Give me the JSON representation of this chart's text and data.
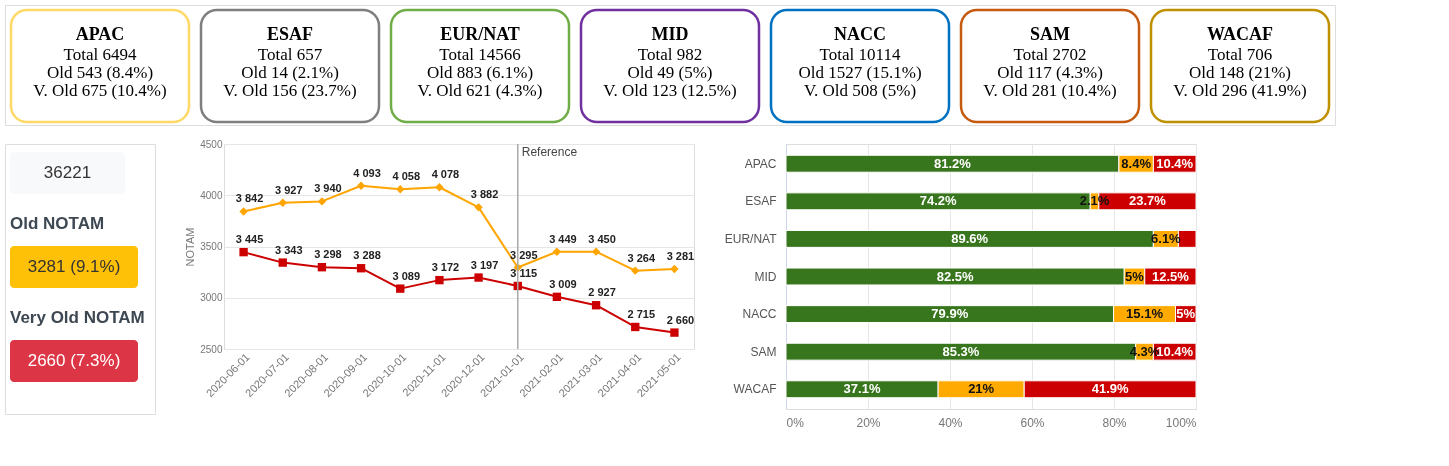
{
  "chart_data": [
    {
      "type": "other",
      "categories": [
        "APAC",
        "ESAF",
        "EUR/NAT",
        "MID",
        "NACC",
        "SAM",
        "WACAF"
      ],
      "colors": [
        "#ffd966",
        "#7f7f7f",
        "#70ad47",
        "#7030a0",
        "#0070c0",
        "#c55a11",
        "#bf9000"
      ],
      "annotations": [
        "Total 6494",
        "Old 543 (8.4%)",
        "V. Old 675 (10.4%)",
        "Total 657",
        "Old 14 (2.1%)",
        "V. Old 156 (23.7%)",
        "Total 14566",
        "Old 883 (6.1%)",
        "V. Old 621 (4.3%)",
        "Total 982",
        "Old 49 (5%)",
        "V. Old 123 (12.5%)",
        "Total 10114",
        "Old 1527 (15.1%)",
        "V. Old 508 (5%)",
        "Total 2702",
        "Old 117 (4.3%)",
        "V. Old 281 (10.4%)",
        "Total 706",
        "Old 148 (21%)",
        "V. Old 296 (41.9%)"
      ]
    },
    {
      "type": "other",
      "annotations": [
        "36221",
        "Old NOTAM",
        "3281 (9.1%)",
        "Very Old NOTAM",
        "2660 (7.3%)"
      ],
      "colors": [
        "#f8f9fa",
        "#ffc107",
        "#dc3545"
      ]
    },
    {
      "type": "line",
      "categories": [
        "2020-06-01",
        "2020-07-01",
        "2020-08-01",
        "2020-09-01",
        "2020-10-01",
        "2020-11-01",
        "2020-12-01",
        "2021-01-01",
        "2021-02-01",
        "2021-03-01",
        "2021-04-01",
        "2021-05-01"
      ],
      "ylabel": "NOTAM",
      "ylim": [
        2500,
        4500
      ],
      "yticks": [
        2500,
        3000,
        3500,
        4000,
        4500
      ],
      "grid": "y",
      "ref_lines": [
        {
          "axis": "x",
          "value": "2021-01-01",
          "label": "Reference",
          "color": "#aaaaaa"
        }
      ],
      "series": [
        {
          "color": "#ffa500",
          "marker": "diamond",
          "values": [
            3842,
            3927,
            3940,
            4093,
            4058,
            4078,
            3882,
            3295,
            3449,
            3450,
            3264,
            3281
          ],
          "value_labels": [
            "3 842",
            "3 927",
            "3 940",
            "4 093",
            "4 058",
            "4 078",
            "3 882",
            "3 295",
            "3 449",
            "3 450",
            "3 264",
            "3 281"
          ]
        },
        {
          "color": "#cc0000",
          "marker": "square",
          "values": [
            3445,
            3343,
            3298,
            3288,
            3089,
            3172,
            3197,
            3115,
            3009,
            2927,
            2715,
            2660
          ],
          "value_labels": [
            "3 445",
            "3 343",
            "3 298",
            "3 288",
            "3 089",
            "3 172",
            "3 197",
            "3 115",
            "3 009",
            "2 927",
            "2 715",
            "2 660"
          ]
        }
      ]
    },
    {
      "type": "bar",
      "orientation": "horizontal",
      "stacked": true,
      "grid": "x",
      "categories": [
        "APAC",
        "ESAF",
        "EUR/NAT",
        "MID",
        "NACC",
        "SAM",
        "WACAF"
      ],
      "xlim": [
        0,
        100
      ],
      "xticks": [
        {
          "value": 0,
          "label": "0%"
        },
        {
          "value": 20,
          "label": "20%"
        },
        {
          "value": 40,
          "label": "40%"
        },
        {
          "value": 60,
          "label": "60%"
        },
        {
          "value": 80,
          "label": "80%"
        },
        {
          "value": 100,
          "label": "100%"
        }
      ],
      "series": [
        {
          "color": "#38761d",
          "values": [
            81.2,
            74.2,
            89.6,
            82.5,
            79.9,
            85.3,
            37.1
          ],
          "value_labels": [
            "81.2%",
            "74.2%",
            "89.6%",
            "82.5%",
            "79.9%",
            "85.3%",
            "37.1%"
          ]
        },
        {
          "color": "#ffaa00",
          "values": [
            8.4,
            2.1,
            6.1,
            5,
            15.1,
            4.3,
            21
          ],
          "value_labels": [
            "8.4%",
            "2.1%",
            "6.1%",
            "5%",
            "15.1%",
            "4.3%",
            "21%"
          ]
        },
        {
          "color": "#cc0000",
          "values": [
            10.4,
            23.7,
            4.3,
            12.5,
            5,
            10.4,
            41.9
          ],
          "value_labels": [
            "10.4%",
            "23.7%",
            null,
            "12.5%",
            "5%",
            "10.4%",
            "41.9%"
          ]
        }
      ]
    }
  ]
}
